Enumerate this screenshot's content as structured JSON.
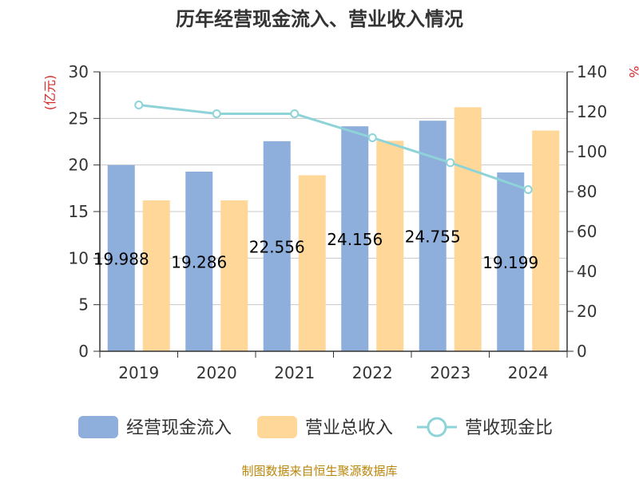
{
  "chart_data": {
    "type": "bar",
    "title": "历年经营现金流入、营业收入情况",
    "categories": [
      "2019",
      "2020",
      "2021",
      "2022",
      "2023",
      "2024"
    ],
    "series": [
      {
        "name": "经营现金流入",
        "type": "bar",
        "axis": "left",
        "values": [
          19.988,
          19.286,
          22.556,
          24.156,
          24.755,
          19.199
        ],
        "data_labels": [
          "19.988",
          "19.286",
          "22.556",
          "24.156",
          "24.755",
          "19.199"
        ],
        "color": "#8eaedb"
      },
      {
        "name": "营业总收入",
        "type": "bar",
        "axis": "left",
        "values": [
          16.2,
          16.2,
          18.9,
          22.6,
          26.2,
          23.7
        ],
        "color": "#ffd899"
      },
      {
        "name": "营收现金比",
        "type": "line",
        "axis": "right",
        "values": [
          123.4,
          119.0,
          119.0,
          107.0,
          94.5,
          81.0
        ],
        "color": "#8dd3d8"
      }
    ],
    "y_left": {
      "unit_label": "(亿元)",
      "min": 0,
      "max": 30,
      "ticks": [
        "0",
        "5",
        "10",
        "15",
        "20",
        "25",
        "30"
      ]
    },
    "y_right": {
      "unit_label": "%",
      "min": 0,
      "max": 140,
      "ticks": [
        "0",
        "20",
        "40",
        "60",
        "80",
        "100",
        "120",
        "140"
      ]
    },
    "grid": true,
    "legend_position": "bottom"
  },
  "source_note": "制图数据来自恒生聚源数据库"
}
